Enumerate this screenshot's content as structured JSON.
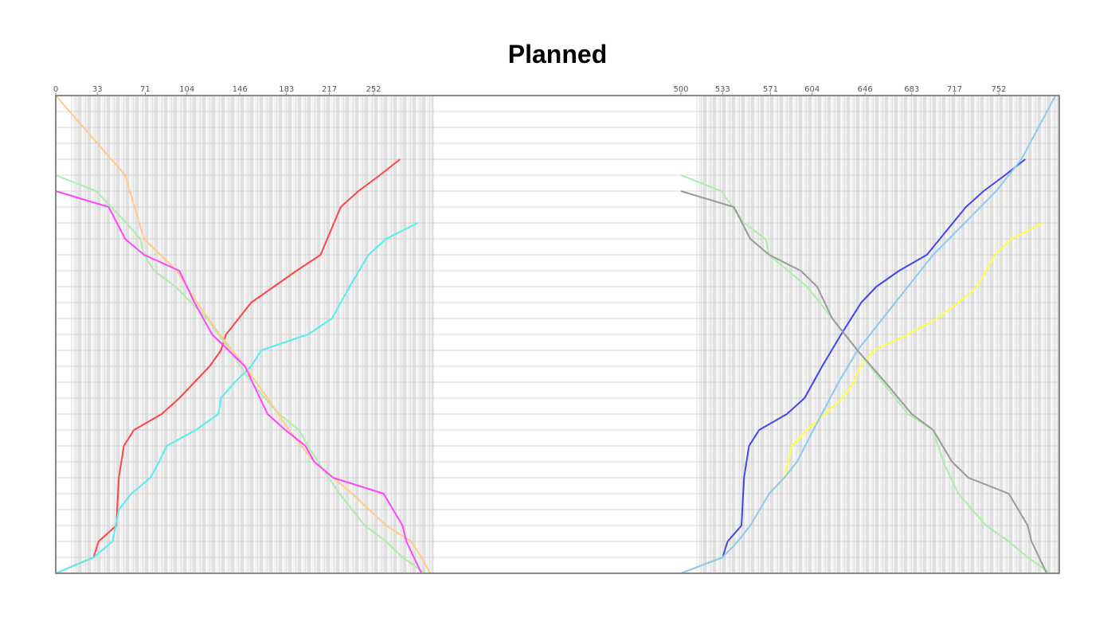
{
  "chart_data": {
    "type": "line",
    "title": "Planned",
    "grid": true,
    "panels": [
      {
        "name": "left",
        "x_ticks": [
          0,
          33,
          71,
          104,
          146,
          183,
          217,
          252
        ],
        "x_range": [
          0,
          300
        ],
        "y_range": [
          0,
          30
        ],
        "series": [
          {
            "color": "#ff4444",
            "points": [
              [
                0,
                0
              ],
              [
                30,
                1
              ],
              [
                34,
                2
              ],
              [
                48,
                3
              ],
              [
                50,
                6
              ],
              [
                54,
                8
              ],
              [
                62,
                9
              ],
              [
                84,
                10
              ],
              [
                98,
                11
              ],
              [
                110,
                12
              ],
              [
                122,
                13
              ],
              [
                131,
                14
              ],
              [
                135,
                15
              ],
              [
                155,
                17
              ],
              [
                173,
                18
              ],
              [
                191,
                19
              ],
              [
                210,
                20
              ],
              [
                226,
                23
              ],
              [
                240,
                24
              ],
              [
                257,
                25
              ],
              [
                273,
                26
              ]
            ]
          },
          {
            "color": "#55eeee",
            "points": [
              [
                0,
                0
              ],
              [
                30,
                1
              ],
              [
                45,
                2
              ],
              [
                50,
                4
              ],
              [
                60,
                5
              ],
              [
                75,
                6
              ],
              [
                82,
                7
              ],
              [
                88,
                8
              ],
              [
                111,
                9
              ],
              [
                129,
                10
              ],
              [
                131,
                11
              ],
              [
                142,
                12
              ],
              [
                155,
                13
              ],
              [
                163,
                14
              ],
              [
                200,
                15
              ],
              [
                219,
                16
              ],
              [
                233,
                18
              ],
              [
                248,
                20
              ],
              [
                262,
                21
              ],
              [
                287,
                22
              ]
            ]
          },
          {
            "color": "#aaeeaa",
            "points": [
              [
                0,
                25
              ],
              [
                32,
                24
              ],
              [
                56,
                22
              ],
              [
                67,
                21
              ],
              [
                70,
                20
              ],
              [
                78,
                19
              ],
              [
                95,
                18
              ],
              [
                120,
                16
              ],
              [
                138,
                14
              ],
              [
                155,
                12
              ],
              [
                177,
                10
              ],
              [
                193,
                9
              ],
              [
                200,
                8
              ],
              [
                208,
                7
              ],
              [
                225,
                5
              ],
              [
                245,
                3
              ],
              [
                262,
                2
              ],
              [
                275,
                1
              ],
              [
                293,
                0
              ]
            ]
          },
          {
            "color": "#ffcc88",
            "points": [
              [
                0,
                30
              ],
              [
                55,
                25
              ],
              [
                70,
                21
              ],
              [
                96,
                19
              ],
              [
                112,
                17
              ],
              [
                130,
                15
              ],
              [
                150,
                13
              ],
              [
                168,
                11
              ],
              [
                185,
                9
              ],
              [
                205,
                7
              ],
              [
                235,
                5
              ],
              [
                262,
                3
              ],
              [
                282,
                2
              ],
              [
                290,
                1
              ],
              [
                297,
                0
              ]
            ]
          },
          {
            "color": "#ff44ff",
            "points": [
              [
                0,
                24
              ],
              [
                42,
                23
              ],
              [
                55,
                21
              ],
              [
                70,
                20
              ],
              [
                98,
                19
              ],
              [
                110,
                17
              ],
              [
                124,
                15
              ],
              [
                150,
                13
              ],
              [
                168,
                10
              ],
              [
                182,
                9
              ],
              [
                198,
                8
              ],
              [
                205,
                7
              ],
              [
                220,
                6
              ],
              [
                260,
                5
              ],
              [
                275,
                3
              ],
              [
                278,
                2
              ],
              [
                290,
                0
              ]
            ]
          }
        ]
      },
      {
        "name": "right",
        "x_ticks": [
          500,
          533,
          571,
          604,
          646,
          683,
          717,
          752
        ],
        "x_range": [
          500,
          800
        ],
        "y_range": [
          0,
          30
        ],
        "series": [
          {
            "color": "#4444ee",
            "points": [
              [
                500,
                0
              ],
              [
                533,
                1
              ],
              [
                537,
                2
              ],
              [
                548,
                3
              ],
              [
                550,
                6
              ],
              [
                554,
                8
              ],
              [
                562,
                9
              ],
              [
                584,
                10
              ],
              [
                598,
                11
              ],
              [
                612,
                13
              ],
              [
                627,
                15
              ],
              [
                643,
                17
              ],
              [
                655,
                18
              ],
              [
                673,
                19
              ],
              [
                695,
                20
              ],
              [
                726,
                23
              ],
              [
                740,
                24
              ],
              [
                757,
                25
              ],
              [
                773,
                26
              ]
            ]
          },
          {
            "color": "#ffff44",
            "points": [
              [
                500,
                0
              ],
              [
                533,
                1
              ],
              [
                545,
                2
              ],
              [
                555,
                3
              ],
              [
                570,
                5
              ],
              [
                582,
                6
              ],
              [
                588,
                8
              ],
              [
                600,
                9
              ],
              [
                614,
                10
              ],
              [
                628,
                11
              ],
              [
                637,
                12
              ],
              [
                642,
                13
              ],
              [
                653,
                14
              ],
              [
                680,
                15
              ],
              [
                703,
                16
              ],
              [
                720,
                17
              ],
              [
                735,
                18
              ],
              [
                749,
                20
              ],
              [
                762,
                21
              ],
              [
                787,
                22
              ]
            ]
          },
          {
            "color": "#aaeeaa",
            "points": [
              [
                500,
                25
              ],
              [
                532,
                24
              ],
              [
                550,
                22
              ],
              [
                567,
                21
              ],
              [
                570,
                20
              ],
              [
                585,
                19
              ],
              [
                600,
                18
              ],
              [
                620,
                16
              ],
              [
                640,
                14
              ],
              [
                660,
                12
              ],
              [
                680,
                10
              ],
              [
                700,
                9
              ],
              [
                708,
                7
              ],
              [
                720,
                5
              ],
              [
                742,
                3
              ],
              [
                760,
                2
              ],
              [
                775,
                1
              ],
              [
                793,
                0
              ]
            ]
          },
          {
            "color": "#88ccee",
            "points": [
              [
                500,
                0
              ],
              [
                533,
                1
              ],
              [
                545,
                2
              ],
              [
                555,
                3
              ],
              [
                570,
                5
              ],
              [
                582,
                6
              ],
              [
                592,
                7
              ],
              [
                605,
                9
              ],
              [
                625,
                12
              ],
              [
                640,
                14
              ],
              [
                660,
                16
              ],
              [
                680,
                18
              ],
              [
                700,
                20
              ],
              [
                725,
                22
              ],
              [
                750,
                24
              ],
              [
                770,
                26
              ],
              [
                797,
                30
              ]
            ]
          },
          {
            "color": "#999999",
            "points": [
              [
                500,
                24
              ],
              [
                542,
                23
              ],
              [
                555,
                21
              ],
              [
                570,
                20
              ],
              [
                595,
                19
              ],
              [
                608,
                18
              ],
              [
                620,
                16
              ],
              [
                640,
                14
              ],
              [
                662,
                12
              ],
              [
                683,
                10
              ],
              [
                700,
                9
              ],
              [
                715,
                7
              ],
              [
                728,
                6
              ],
              [
                760,
                5
              ],
              [
                775,
                3
              ],
              [
                778,
                2
              ],
              [
                790,
                0
              ]
            ]
          }
        ]
      }
    ]
  }
}
